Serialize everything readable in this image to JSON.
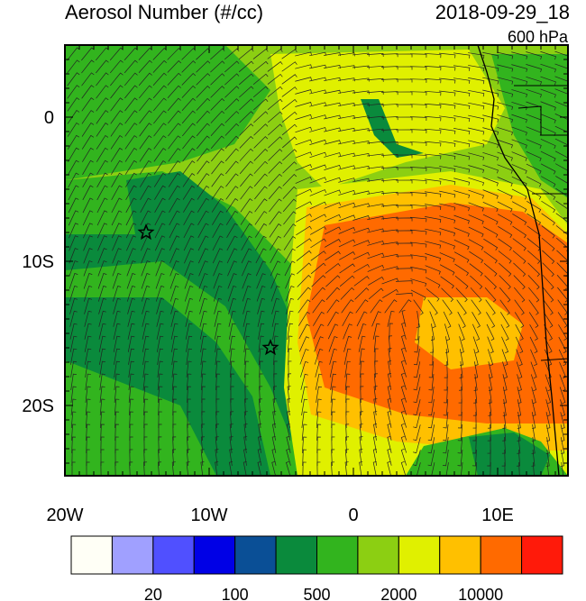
{
  "title": "Aerosol Number (#/cc)",
  "date": "2018-09-29_18",
  "level": "600 hPa",
  "map": {
    "lon_labels": [
      "20W",
      "10W",
      "0",
      "10E"
    ],
    "lat_labels": [
      "0",
      "10S",
      "20S"
    ]
  },
  "colorbar": {
    "colors": [
      "#fffff6",
      "#a0a0ff",
      "#5050ff",
      "#0000e6",
      "#0a4f96",
      "#0a8a3c",
      "#32b41e",
      "#8ccf12",
      "#e0f000",
      "#ffc000",
      "#ff6a00",
      "#ff1a0a"
    ],
    "labels": [
      "20",
      "100",
      "500",
      "2000",
      "10000"
    ]
  }
}
